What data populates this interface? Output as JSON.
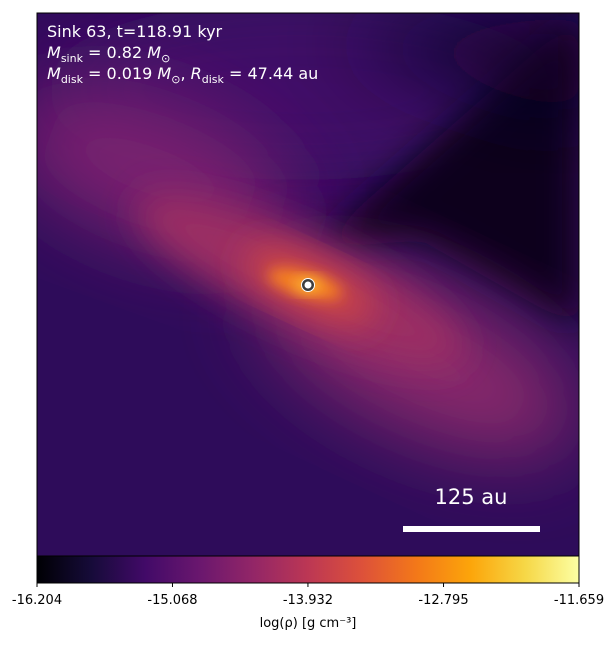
{
  "chart_data": {
    "type": "density-map",
    "annotations": [
      [
        {
          "text": "Sink 63, t=118.91 kyr",
          "style": "normal"
        }
      ],
      [
        {
          "text": "M",
          "style": "italic"
        },
        {
          "text": "sink",
          "style": "sub"
        },
        {
          "text": " = 0.82 ",
          "style": "normal"
        },
        {
          "text": "M",
          "style": "italic"
        },
        {
          "text": "⊙",
          "style": "sub"
        }
      ],
      [
        {
          "text": "M",
          "style": "italic"
        },
        {
          "text": "disk",
          "style": "sub"
        },
        {
          "text": " = 0.019 ",
          "style": "normal"
        },
        {
          "text": "M",
          "style": "italic"
        },
        {
          "text": "⊙",
          "style": "sub"
        },
        {
          "text": ", ",
          "style": "normal"
        },
        {
          "text": "R",
          "style": "italic"
        },
        {
          "text": "disk",
          "style": "sub"
        },
        {
          "text": " = 47.44 au",
          "style": "normal"
        }
      ]
    ],
    "scalebar_label": "125 au",
    "colorbar": {
      "label": "log(ρ) [g cm⁻³]",
      "lim": [
        -16.204,
        -11.659
      ],
      "ticks": [
        -16.204,
        -15.068,
        -13.932,
        -12.795,
        -11.659
      ],
      "colormap": "inferno"
    }
  }
}
